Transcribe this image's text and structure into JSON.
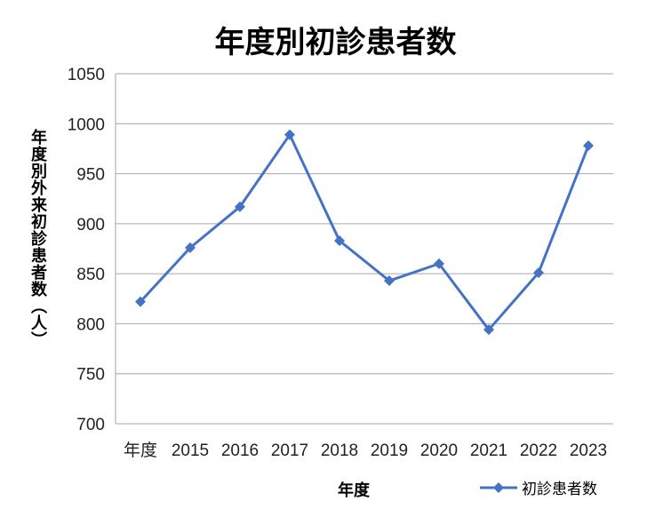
{
  "chart_data": {
    "type": "line",
    "title": "年度別初診患者数",
    "xlabel": "年度",
    "ylabel": "年度別外来初診患者数（人）",
    "categories": [
      "年度",
      "2015",
      "2016",
      "2017",
      "2018",
      "2019",
      "2020",
      "2021",
      "2022",
      "2023"
    ],
    "series": [
      {
        "name": "初診患者数",
        "values": [
          822,
          876,
          917,
          989,
          883,
          843,
          860,
          794,
          851,
          978
        ],
        "color": "#4472C4",
        "marker": "diamond"
      }
    ],
    "ylim": [
      700,
      1050
    ],
    "yticks": [
      700,
      750,
      800,
      850,
      900,
      950,
      1000,
      1050
    ],
    "grid": true,
    "legend": "bottom-right"
  }
}
